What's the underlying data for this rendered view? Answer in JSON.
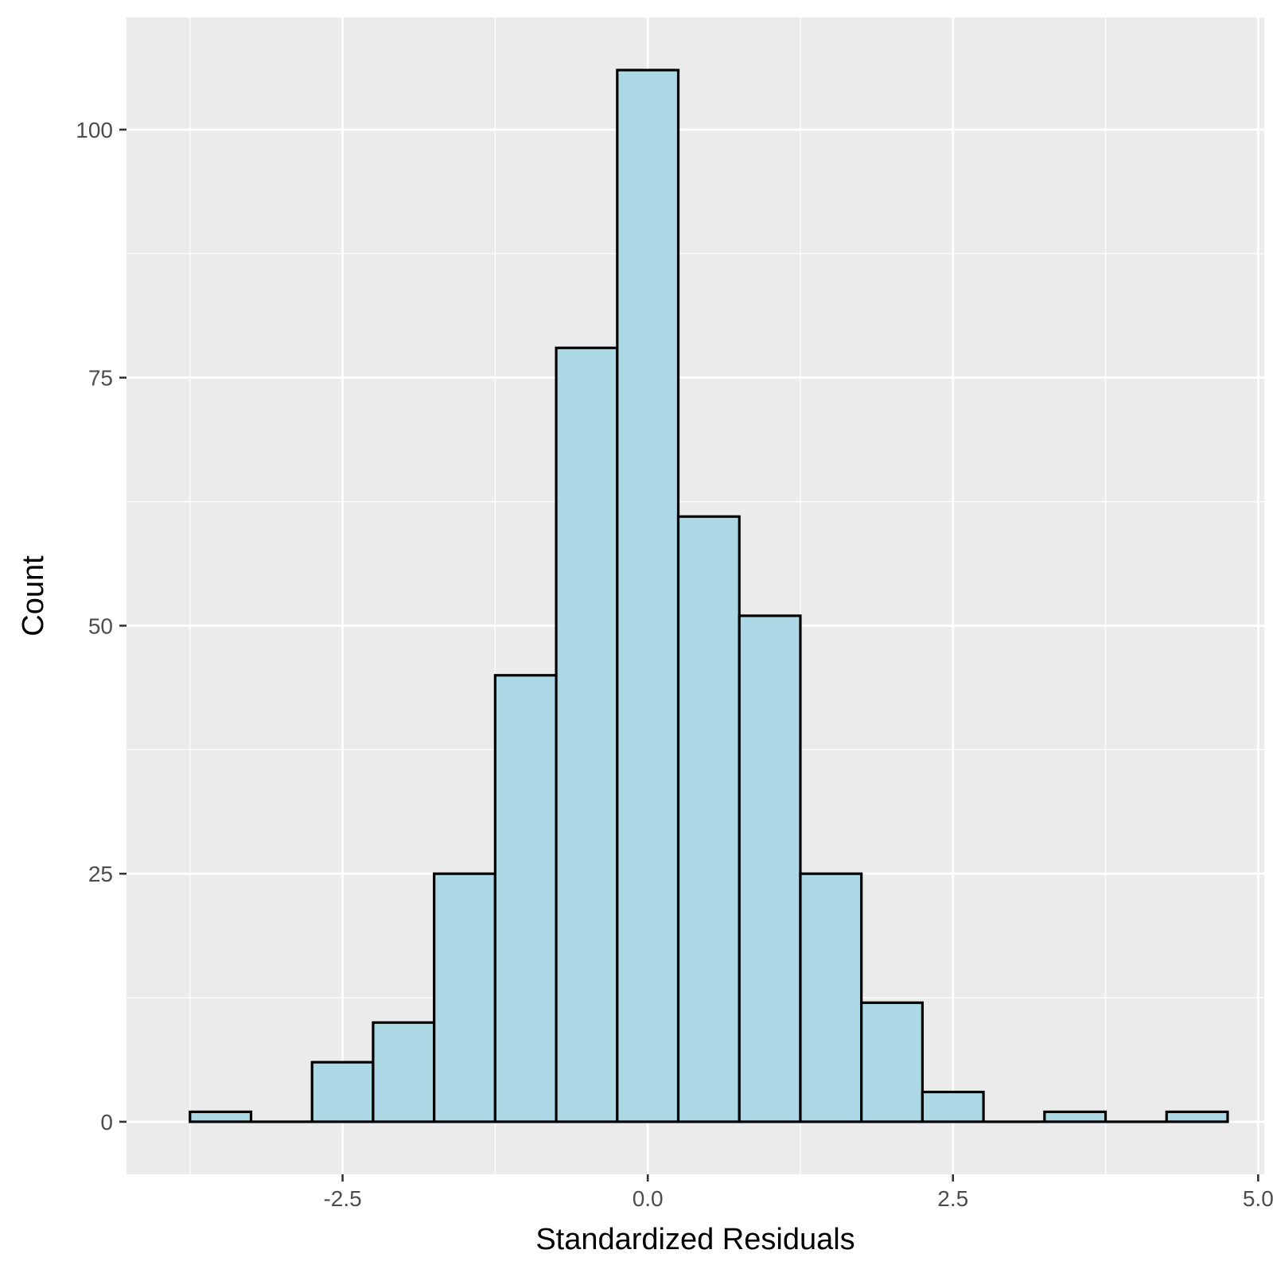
{
  "chart_data": {
    "type": "bar",
    "title": "",
    "xlabel": "Standardized Residuals",
    "ylabel": "Count",
    "bin_width": 0.5,
    "bins": [
      {
        "x": -3.5,
        "count": 1
      },
      {
        "x": -3.0,
        "count": 0
      },
      {
        "x": -2.5,
        "count": 6
      },
      {
        "x": -2.0,
        "count": 10
      },
      {
        "x": -1.5,
        "count": 25
      },
      {
        "x": -1.0,
        "count": 45
      },
      {
        "x": -0.5,
        "count": 78
      },
      {
        "x": 0.0,
        "count": 106
      },
      {
        "x": 0.5,
        "count": 61
      },
      {
        "x": 1.0,
        "count": 51
      },
      {
        "x": 1.5,
        "count": 25
      },
      {
        "x": 2.0,
        "count": 12
      },
      {
        "x": 2.5,
        "count": 3
      },
      {
        "x": 3.0,
        "count": 0
      },
      {
        "x": 3.5,
        "count": 1
      },
      {
        "x": 4.0,
        "count": 0
      },
      {
        "x": 4.5,
        "count": 1
      }
    ],
    "xlim": [
      -4.27,
      5.05
    ],
    "ylim": [
      -5.3,
      111.3
    ],
    "x_ticks": [
      {
        "value": -2.5,
        "label": "-2.5"
      },
      {
        "value": 0.0,
        "label": "0.0"
      },
      {
        "value": 2.5,
        "label": "2.5"
      },
      {
        "value": 5.0,
        "label": "5.0"
      }
    ],
    "y_ticks": [
      {
        "value": 0,
        "label": "0"
      },
      {
        "value": 25,
        "label": "25"
      },
      {
        "value": 50,
        "label": "50"
      },
      {
        "value": 75,
        "label": "75"
      },
      {
        "value": 100,
        "label": "100"
      }
    ],
    "x_minor": [
      -3.75,
      -1.25,
      1.25,
      3.75
    ],
    "y_minor": [
      12.5,
      37.5,
      62.5,
      87.5
    ],
    "grid": true,
    "legend": "none",
    "colors": {
      "bar_fill": "#add8e6",
      "bar_outline": "#000000",
      "panel_background": "#ebebeb",
      "grid": "#ffffff"
    }
  }
}
